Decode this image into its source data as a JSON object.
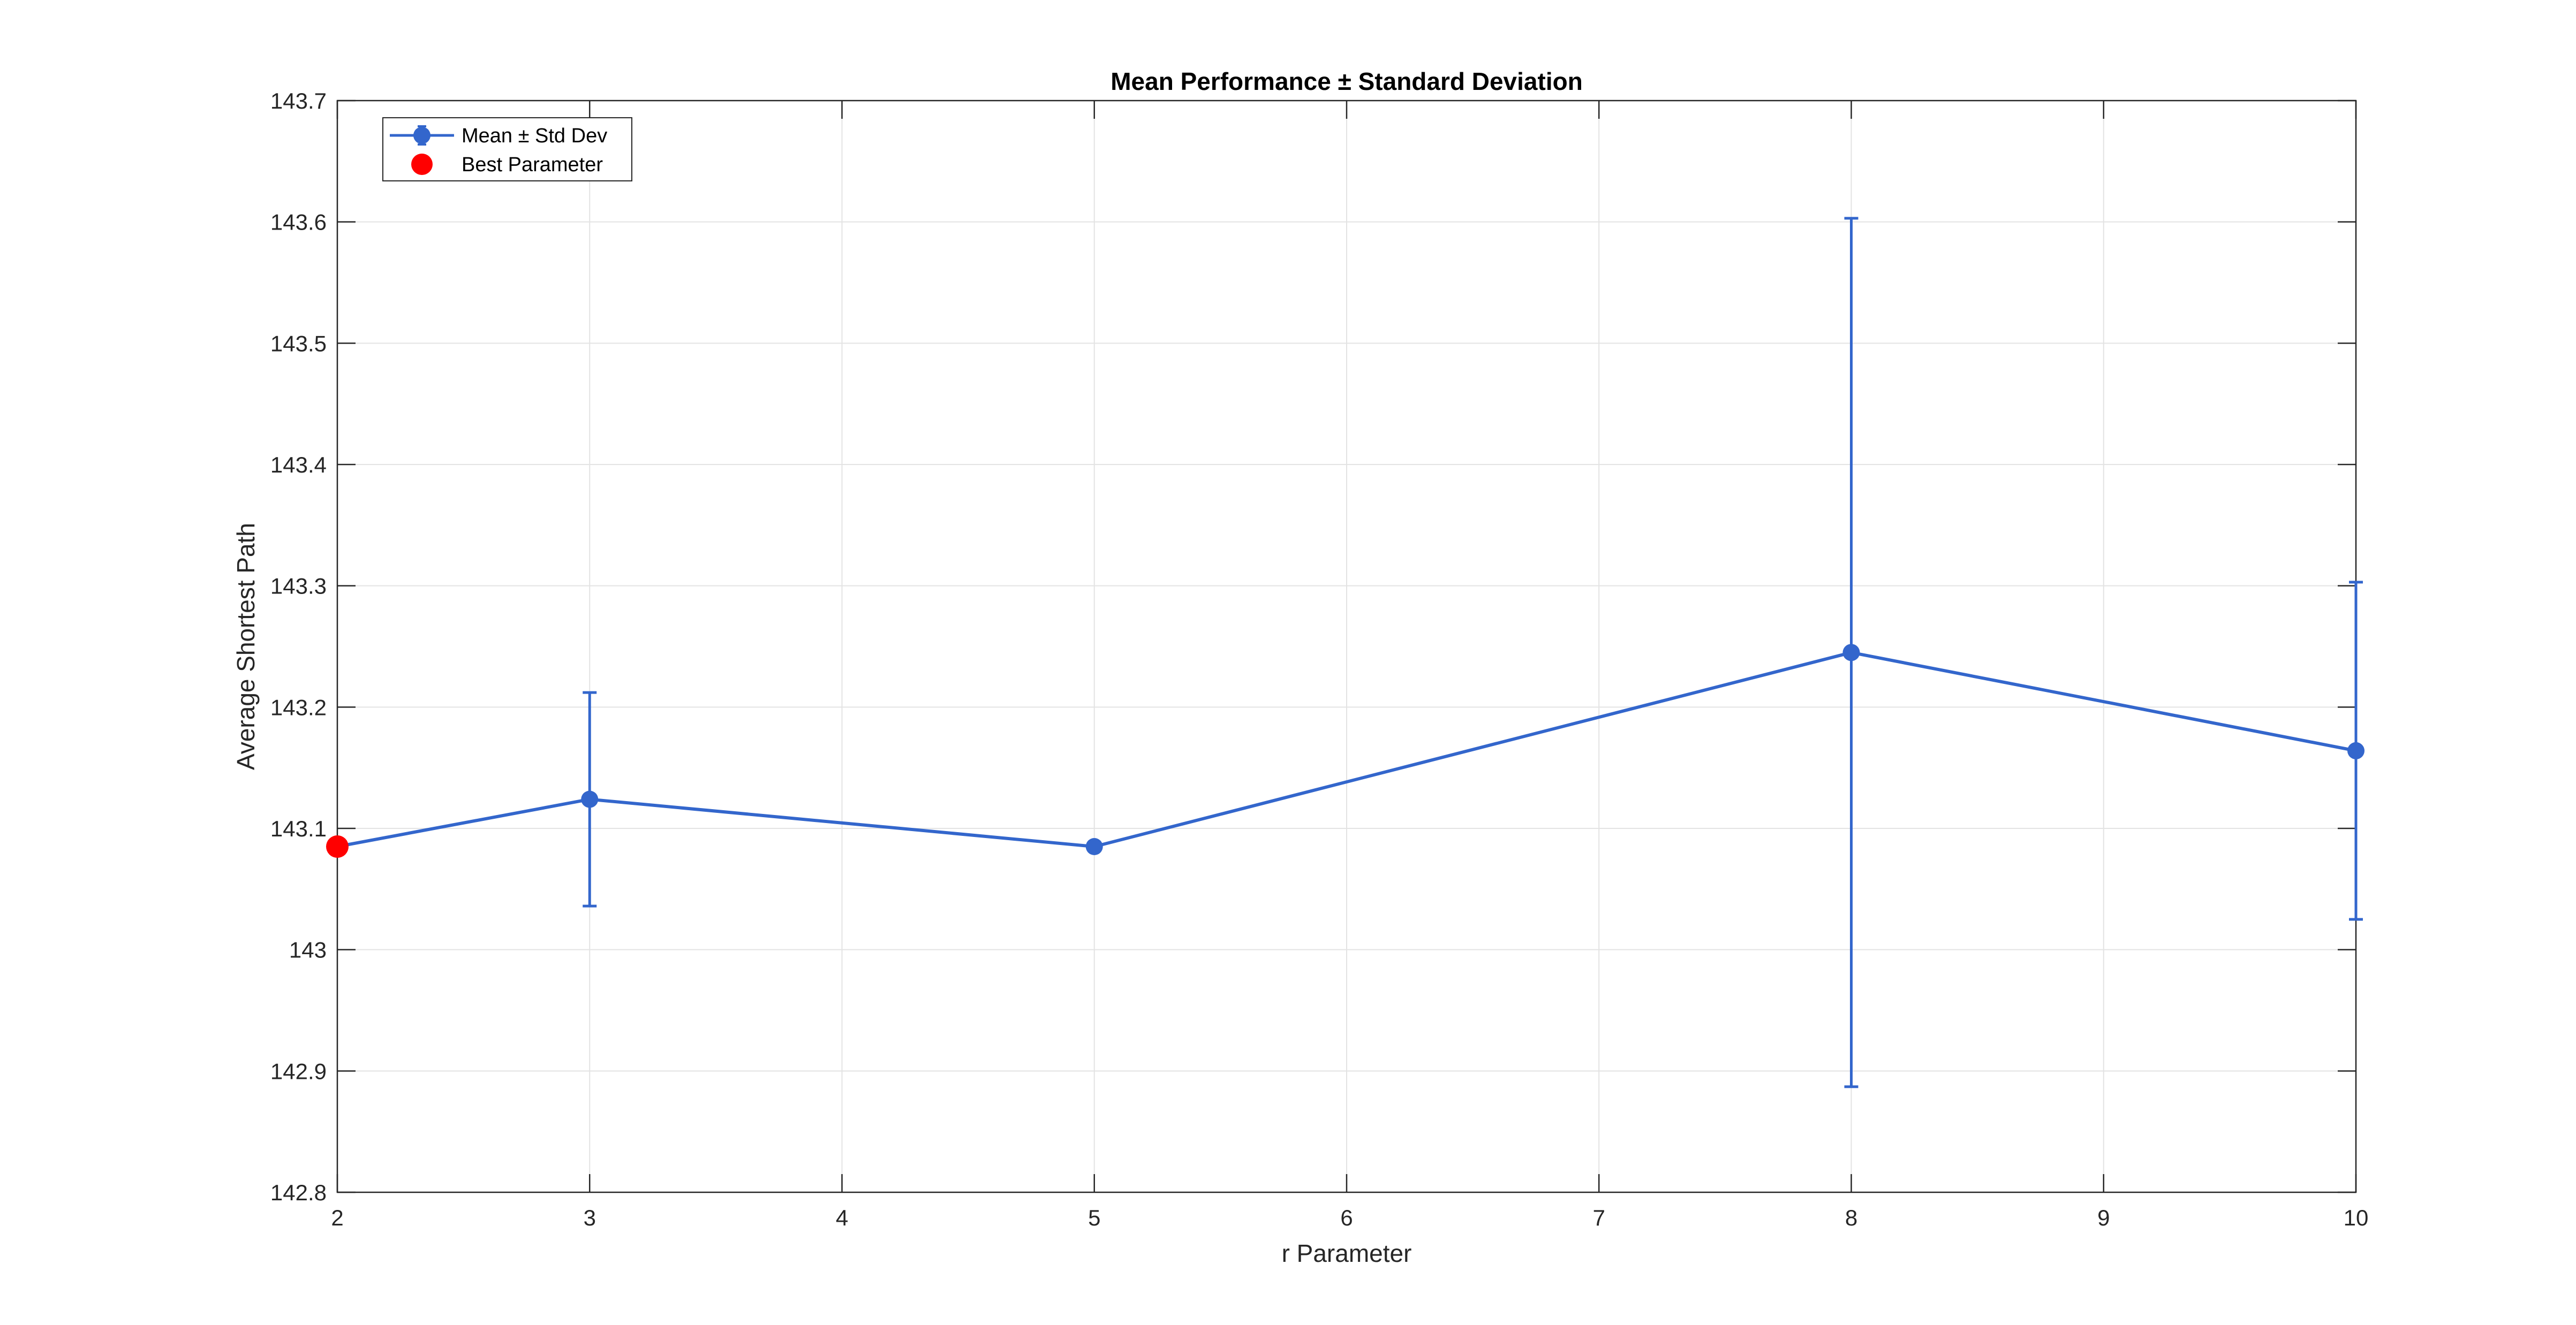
{
  "chart_data": {
    "type": "line",
    "title": "Mean Performance ± Standard Deviation",
    "xlabel": "r Parameter",
    "ylabel": "Average Shortest Path",
    "xlim": [
      2,
      10
    ],
    "ylim": [
      142.8,
      143.7
    ],
    "x_ticks": [
      "2",
      "3",
      "4",
      "5",
      "6",
      "7",
      "8",
      "9",
      "10"
    ],
    "y_ticks": [
      "142.8",
      "142.9",
      "143",
      "143.1",
      "143.2",
      "143.3",
      "143.4",
      "143.5",
      "143.6",
      "143.7"
    ],
    "grid": true,
    "legend_position": "top-left",
    "series": [
      {
        "name": "Mean ± Std Dev",
        "color": "#3366cc",
        "x": [
          2,
          3,
          5,
          8,
          10
        ],
        "values": [
          143.085,
          143.124,
          143.085,
          143.245,
          143.164
        ],
        "std": [
          0.0,
          0.088,
          0.0,
          0.358,
          0.139
        ]
      },
      {
        "name": "Best Parameter",
        "color": "#ff0000",
        "x": [
          2
        ],
        "values": [
          143.085
        ]
      }
    ]
  }
}
